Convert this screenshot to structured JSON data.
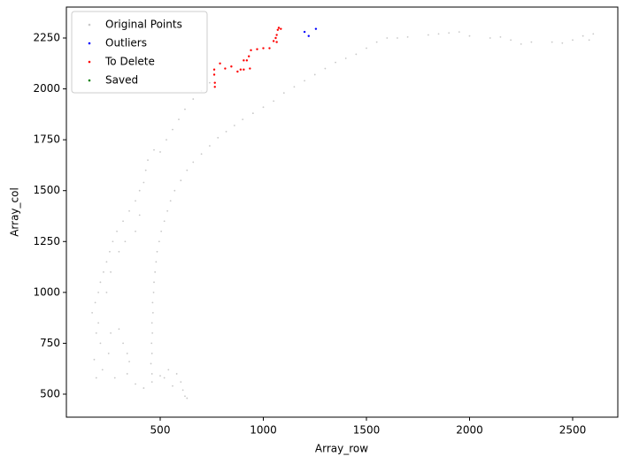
{
  "chart_data": {
    "type": "scatter",
    "xlabel": "Array_row",
    "ylabel": "Array_col",
    "xlim": [
      45,
      2719
    ],
    "ylim": [
      387,
      2402
    ],
    "xticks": [
      500,
      1000,
      1500,
      2000,
      2500
    ],
    "yticks": [
      500,
      750,
      1000,
      1250,
      1500,
      1750,
      2000,
      2250
    ],
    "legend": "upper left",
    "series": [
      {
        "name": "Original Points",
        "color": "#c8c8c8",
        "x": [
          460,
          455,
          460,
          458,
          462,
          460,
          465,
          463,
          468,
          470,
          475,
          480,
          485,
          495,
          505,
          520,
          535,
          550,
          570,
          600,
          630,
          660,
          700,
          740,
          780,
          820,
          860,
          900,
          950,
          1000,
          1050,
          1100,
          1150,
          1200,
          1250,
          1300,
          1350,
          1400,
          1450,
          1500,
          1550,
          1600,
          1700,
          1800,
          1900,
          1950,
          2000,
          2100,
          2200,
          2300,
          2400,
          2500,
          2550,
          2600,
          2580,
          2450,
          2250,
          2150,
          1850,
          1650,
          170,
          185,
          200,
          210,
          225,
          240,
          255,
          270,
          290,
          320,
          350,
          380,
          400,
          420,
          430,
          440,
          470,
          500,
          530,
          560,
          590,
          620,
          660,
          700,
          740,
          400,
          380,
          330,
          300,
          260,
          240,
          200,
          260,
          300,
          320,
          340,
          350,
          180,
          190,
          220,
          280,
          340,
          380,
          420,
          460,
          500,
          540,
          580,
          600,
          610,
          620,
          630,
          560,
          520,
          250,
          210,
          190
        ],
        "y": [
          600,
          650,
          700,
          750,
          800,
          850,
          900,
          950,
          1000,
          1050,
          1100,
          1150,
          1200,
          1250,
          1300,
          1350,
          1400,
          1450,
          1500,
          1550,
          1600,
          1640,
          1680,
          1720,
          1760,
          1790,
          1820,
          1850,
          1880,
          1910,
          1940,
          1980,
          2010,
          2040,
          2070,
          2100,
          2130,
          2150,
          2170,
          2200,
          2230,
          2250,
          2255,
          2265,
          2275,
          2280,
          2260,
          2250,
          2240,
          2230,
          2230,
          2240,
          2260,
          2270,
          2240,
          2225,
          2220,
          2255,
          2270,
          2250,
          900,
          950,
          1000,
          1050,
          1100,
          1150,
          1200,
          1250,
          1300,
          1350,
          1400,
          1450,
          1500,
          1540,
          1600,
          1650,
          1700,
          1690,
          1750,
          1800,
          1850,
          1900,
          1950,
          1990,
          2030,
          1380,
          1300,
          1250,
          1200,
          1100,
          1000,
          850,
          800,
          820,
          750,
          700,
          660,
          670,
          580,
          620,
          580,
          600,
          550,
          530,
          560,
          590,
          620,
          600,
          560,
          520,
          490,
          480,
          540,
          580,
          700,
          750,
          800
        ]
      },
      {
        "name": "Outliers",
        "color": "#0000ff",
        "x": [
          1200,
          1220,
          1255
        ],
        "y": [
          2280,
          2260,
          2295
        ]
      },
      {
        "name": "To Delete",
        "color": "#ff0000",
        "x": [
          762,
          762,
          765,
          765,
          790,
          815,
          845,
          875,
          890,
          905,
          905,
          920,
          930,
          940,
          970,
          1000,
          1030,
          1050,
          1060,
          1065,
          1070,
          1075,
          1085,
          1065,
          935
        ],
        "y": [
          2095,
          2070,
          2030,
          2010,
          2125,
          2100,
          2110,
          2085,
          2095,
          2095,
          2140,
          2140,
          2160,
          2190,
          2195,
          2200,
          2200,
          2235,
          2250,
          2265,
          2290,
          2300,
          2295,
          2230,
          2100
        ]
      },
      {
        "name": "Saved",
        "color": "#008000",
        "x": [],
        "y": []
      }
    ]
  }
}
